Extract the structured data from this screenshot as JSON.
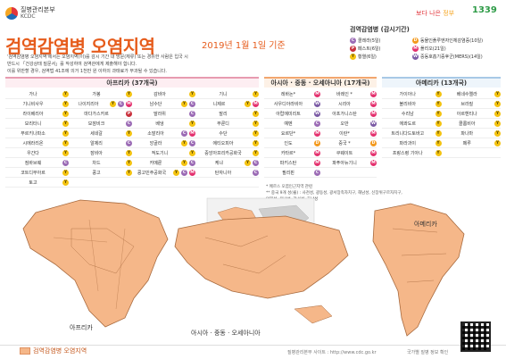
{
  "header": {
    "org_kr": "질병관리본부",
    "org_en": "KCDC",
    "brand_slogan_a": "보다 나은",
    "brand_slogan_b": "정부",
    "brand_call": "1339"
  },
  "title": "검역감염병 오염지역",
  "date": "2019년 1월 1일 기준",
  "intro": [
    "'검역감염병 오염지역'에서는 오염지역(이)를 감시 기간 내 방문(체류) 또는 경유한 사람은 입국 시",
    "반드시 「건강상태 질문서」를 작성하여 검역관에게 제출해야 합니다.",
    "이를 위반할 경우, 검역법 41조에 의거 1천만 원 이하의 과태료가 부과될 수 있습니다."
  ],
  "legend": {
    "title": "검역감염병 (감시기간)",
    "items": [
      {
        "code": "C",
        "label": "콜레라(5일)",
        "color": "#9b6bb5"
      },
      {
        "code": "D",
        "label": "동물인플루엔자인체감염증(10일)",
        "color": "#f39a1e"
      },
      {
        "code": "P",
        "label": "페스트(6일)",
        "color": "#c9303c"
      },
      {
        "code": "M",
        "label": "폴리오(21일)",
        "color": "#e4316e"
      },
      {
        "code": "Y",
        "label": "황열(6일)",
        "color": "#f4c310"
      },
      {
        "code": "W",
        "label": "중동호흡기증후군(MERS)(14일)",
        "color": "#7b5ba5"
      }
    ]
  },
  "africa": {
    "title": "아프리카 (37개국)",
    "rows": [
      [
        {
          "n": "가나",
          "b": [
            "Y"
          ]
        },
        {
          "n": "가봉",
          "b": [
            "Y"
          ]
        },
        {
          "n": "감비아",
          "b": [
            "Y"
          ]
        },
        {
          "n": "기니",
          "b": [
            "Y"
          ]
        }
      ],
      [
        {
          "n": "기니비사우",
          "b": [
            "Y"
          ]
        },
        {
          "n": "나이지리아",
          "b": [
            "Y",
            "C",
            "M"
          ]
        },
        {
          "n": "남수단",
          "b": [
            "Y",
            "C"
          ]
        },
        {
          "n": "니제르",
          "b": [
            "Y",
            "M"
          ]
        }
      ],
      [
        {
          "n": "라이베리아",
          "b": [
            "Y"
          ]
        },
        {
          "n": "마다가스카르",
          "b": [
            "P"
          ]
        },
        {
          "n": "말라위",
          "b": [
            "C"
          ]
        },
        {
          "n": "말리",
          "b": [
            "Y"
          ]
        }
      ],
      [
        {
          "n": "모리타니",
          "b": [
            "Y"
          ]
        },
        {
          "n": "모잠비크",
          "b": [
            "C"
          ]
        },
        {
          "n": "베냉",
          "b": [
            "Y"
          ]
        },
        {
          "n": "부룬디",
          "b": [
            "Y"
          ]
        }
      ],
      [
        {
          "n": "부르키나파소",
          "b": [
            "Y"
          ]
        },
        {
          "n": "세네갈",
          "b": [
            "Y"
          ]
        },
        {
          "n": "소말리아",
          "b": [
            "C",
            "M"
          ]
        },
        {
          "n": "수단",
          "b": [
            "Y"
          ]
        }
      ],
      [
        {
          "n": "시에라리온",
          "b": [
            "Y"
          ]
        },
        {
          "n": "알제리",
          "b": [
            "C"
          ]
        },
        {
          "n": "앙골라",
          "b": [
            "Y",
            "C"
          ]
        },
        {
          "n": "에티오피아",
          "b": [
            "Y"
          ]
        }
      ],
      [
        {
          "n": "우간다",
          "b": [
            "Y"
          ]
        },
        {
          "n": "잠비아",
          "b": [
            "Y"
          ]
        },
        {
          "n": "적도기니",
          "b": [
            "Y"
          ]
        },
        {
          "n": "중앙아프리카공화국",
          "b": [
            "Y"
          ]
        }
      ],
      [
        {
          "n": "짐바브웨",
          "b": [
            "C"
          ]
        },
        {
          "n": "차드",
          "b": [
            "Y"
          ]
        },
        {
          "n": "카메룬",
          "b": [
            "Y",
            "C"
          ]
        },
        {
          "n": "케냐",
          "b": [
            "Y",
            "C"
          ]
        }
      ],
      [
        {
          "n": "코트디부아르",
          "b": [
            "Y"
          ]
        },
        {
          "n": "콩고",
          "b": [
            "Y"
          ]
        },
        {
          "n": "콩고민주공화국",
          "b": [
            "Y",
            "C",
            "M"
          ]
        },
        {
          "n": "탄자니아",
          "b": [
            "C"
          ]
        }
      ],
      [
        {
          "n": "토고",
          "b": [
            "Y"
          ]
        }
      ]
    ]
  },
  "asia": {
    "title": "아시아 · 중동 · 오세아니아 (17개국)",
    "rows": [
      [
        {
          "n": "레바논*",
          "b": [
            "M"
          ]
        },
        {
          "n": "바레인 *",
          "b": [
            "M"
          ]
        }
      ],
      [
        {
          "n": "사우디아라비아",
          "b": [
            "W"
          ]
        },
        {
          "n": "시리아",
          "b": [
            "M"
          ]
        }
      ],
      [
        {
          "n": "아랍에미리트",
          "b": [
            "W"
          ]
        },
        {
          "n": "아프가니스탄",
          "b": [
            "M"
          ]
        }
      ],
      [
        {
          "n": "예멘",
          "b": [
            "C"
          ]
        },
        {
          "n": "오만",
          "b": [
            "W"
          ]
        }
      ],
      [
        {
          "n": "요르단*",
          "b": [
            "M"
          ]
        },
        {
          "n": "이란*",
          "b": [
            "M"
          ]
        }
      ],
      [
        {
          "n": "인도",
          "b": [
            "D"
          ]
        },
        {
          "n": "중국 *",
          "b": [
            "D"
          ]
        }
      ],
      [
        {
          "n": "카타르*",
          "b": [
            "M"
          ]
        },
        {
          "n": "쿠웨이트",
          "b": [
            "M"
          ]
        }
      ],
      [
        {
          "n": "파키스탄",
          "b": [
            "M"
          ]
        },
        {
          "n": "파푸아뉴기니",
          "b": [
            "M"
          ]
        }
      ],
      [
        {
          "n": "필리핀",
          "b": [
            "C"
          ]
        }
      ]
    ]
  },
  "america": {
    "title": "아메리카 (13개국)",
    "rows": [
      [
        {
          "n": "가이아나",
          "b": [
            "Y"
          ]
        },
        {
          "n": "베네수엘라",
          "b": [
            "Y"
          ]
        }
      ],
      [
        {
          "n": "볼리비아",
          "b": [
            "Y"
          ]
        },
        {
          "n": "브라질",
          "b": [
            "Y"
          ]
        }
      ],
      [
        {
          "n": "수리남",
          "b": [
            "Y"
          ]
        },
        {
          "n": "아르헨티나",
          "b": [
            "Y"
          ]
        }
      ],
      [
        {
          "n": "에콰도르",
          "b": [
            "Y"
          ]
        },
        {
          "n": "콜롬비아",
          "b": [
            "Y"
          ]
        }
      ],
      [
        {
          "n": "트리니다드토바고",
          "b": [
            "Y"
          ]
        },
        {
          "n": "파나마",
          "b": [
            "Y"
          ]
        }
      ],
      [
        {
          "n": "파라과이",
          "b": [
            "Y"
          ]
        },
        {
          "n": "페루",
          "b": [
            "Y"
          ]
        }
      ],
      [
        {
          "n": "프랑스령 기아나",
          "b": [
            "Y"
          ]
        }
      ]
    ]
  },
  "footnote": [
    "* 메르스 오염인근지역 관련",
    "** 중국 9개 성(省) : 사천성, 광동성, 광서장족자치구, 해남성, 신장위구르자치구,",
    "안휘성, 운남성, 강서성, 호남성"
  ],
  "map_labels": {
    "africa": "아프리카",
    "asia": "아시아 · 중동 · 오세아니아",
    "america": "아메리카"
  },
  "footer": {
    "legend": "검역감염병 오염지역",
    "site": "질병관리본부 사이트 : http://www.cdc.go.kr",
    "qr_label": "국가별 질병 정보 확인"
  }
}
